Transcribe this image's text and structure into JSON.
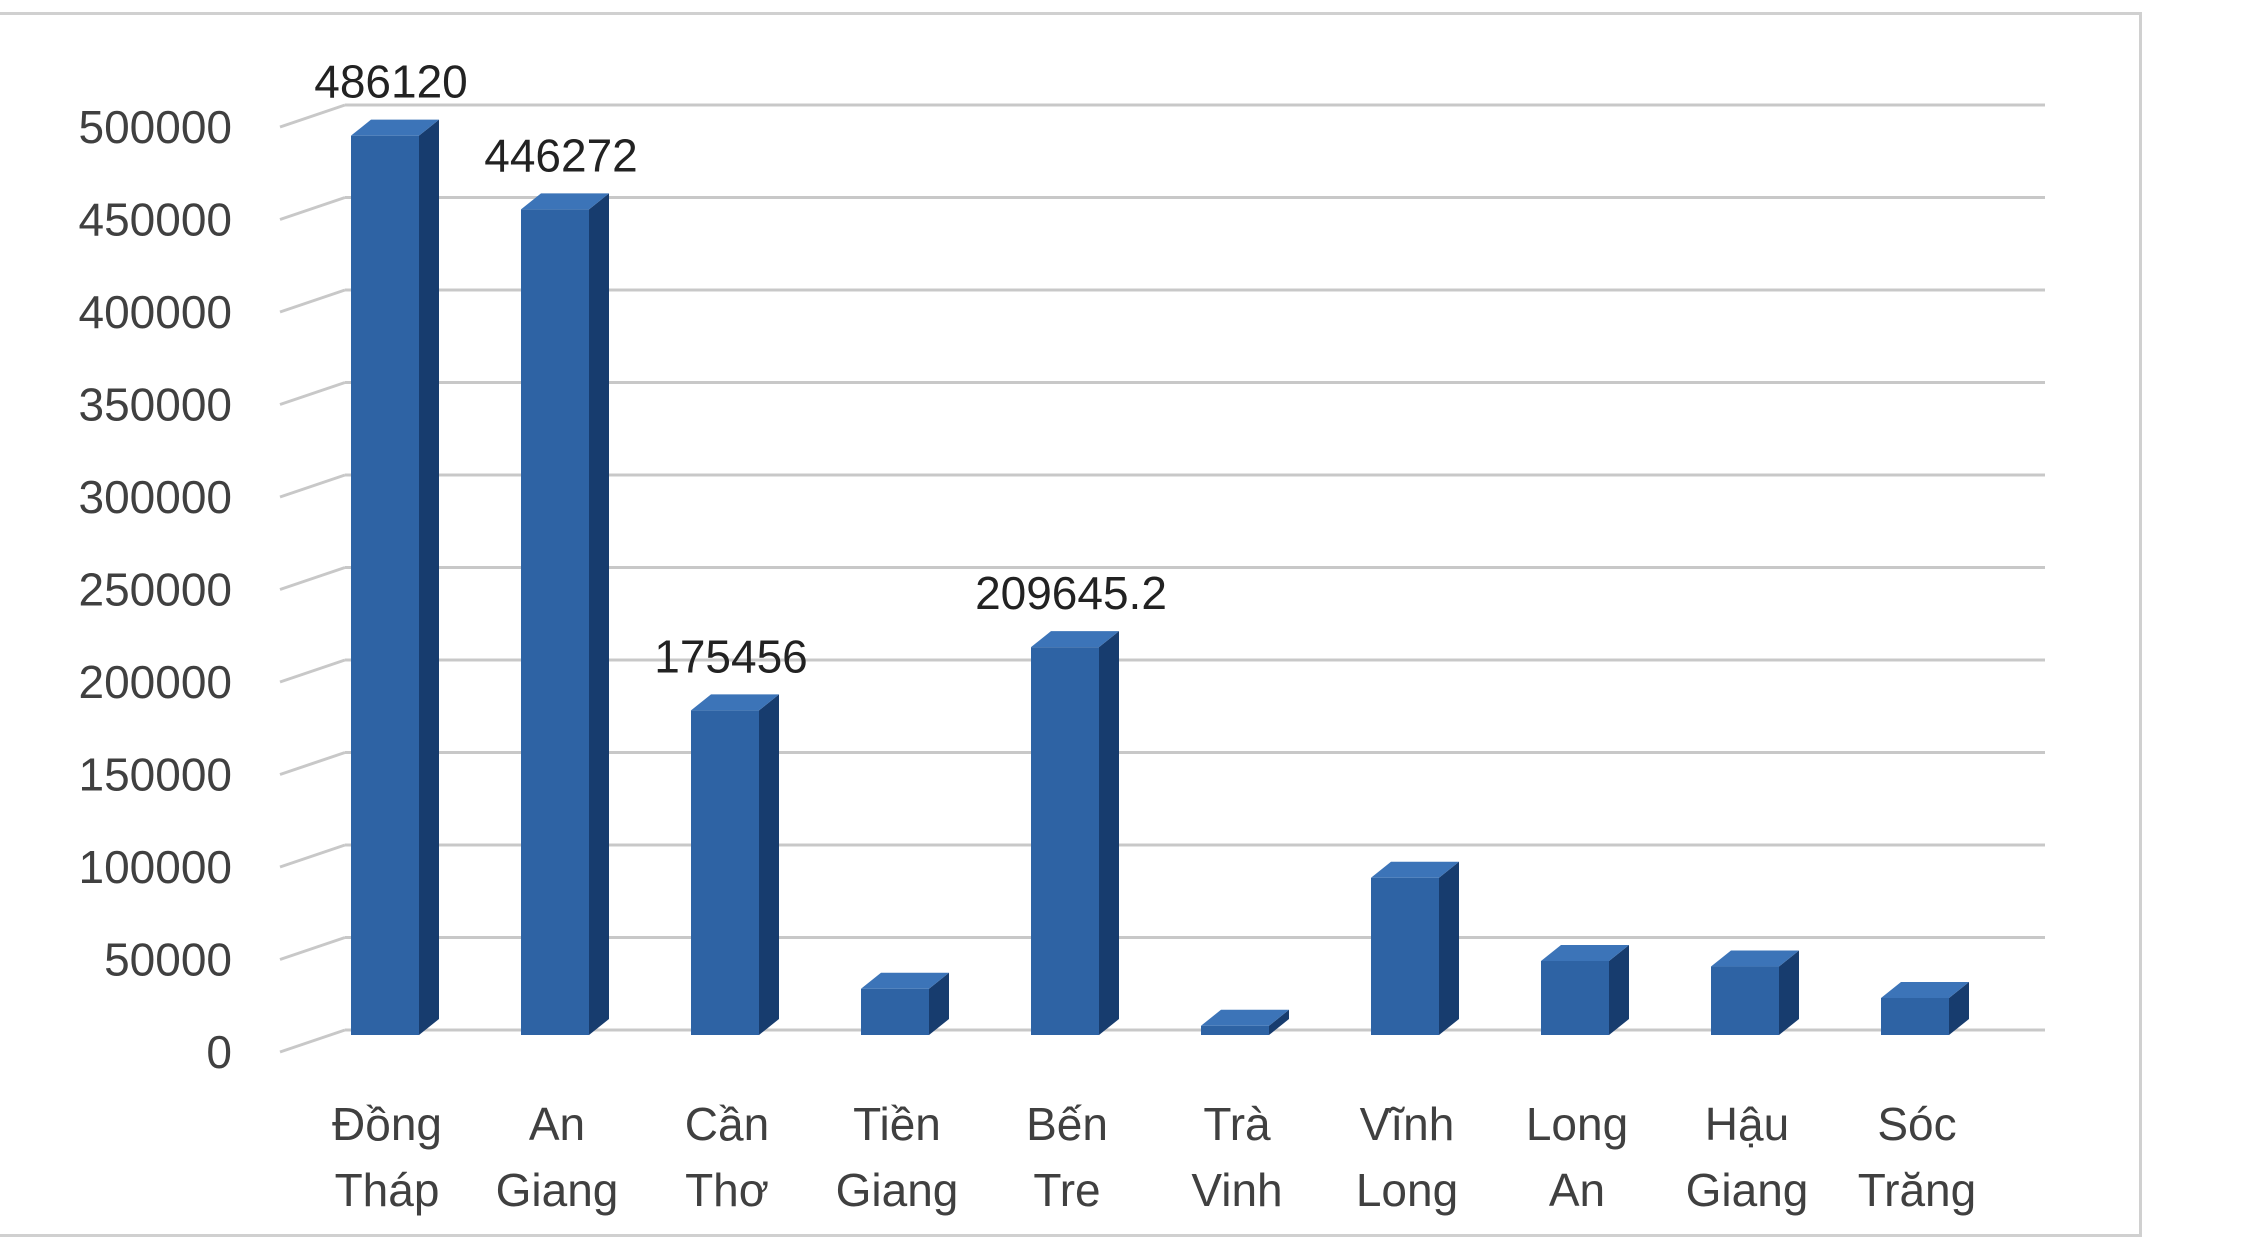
{
  "chart_data": {
    "type": "bar",
    "categories": [
      [
        "Đồng",
        "Tháp"
      ],
      [
        "An",
        "Giang"
      ],
      [
        "Cần",
        "Thơ"
      ],
      [
        "Tiền",
        "Giang"
      ],
      [
        "Bến",
        "Tre"
      ],
      [
        "Trà",
        "Vinh"
      ],
      [
        "Vĩnh",
        "Long"
      ],
      [
        "Long",
        "An"
      ],
      [
        "Hậu",
        "Giang"
      ],
      [
        "Sóc",
        "Trăng"
      ]
    ],
    "values": [
      486120,
      446272,
      175456,
      25000,
      209645.2,
      5000,
      85000,
      40000,
      37000,
      20000
    ],
    "data_labels": [
      "486120",
      "446272",
      "175456",
      "",
      "209645.2",
      "",
      "",
      "",
      "",
      ""
    ],
    "title": "",
    "xlabel": "",
    "ylabel": "",
    "ylim": [
      0,
      500000
    ],
    "yticks": [
      "0",
      "50000",
      "100000",
      "150000",
      "200000",
      "250000",
      "300000",
      "350000",
      "400000",
      "450000",
      "500000"
    ],
    "grid": true,
    "legend": "none",
    "colors": {
      "bar_front": "#2e63a4",
      "bar_side": "#173c6e",
      "bar_top": "#3c74b8",
      "grid": "#c8c8c8"
    }
  }
}
